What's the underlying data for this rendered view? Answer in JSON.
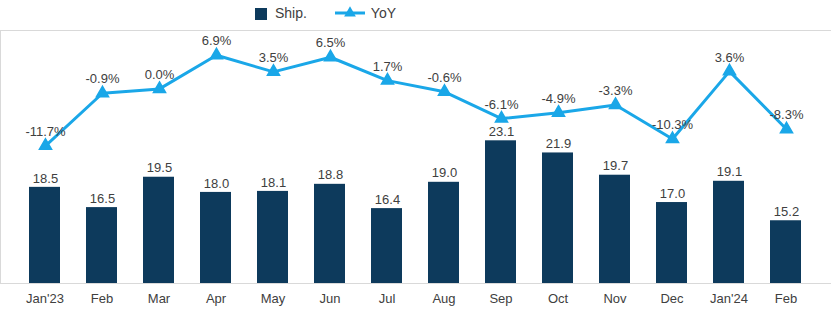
{
  "chart_data": {
    "type": "bar",
    "categories": [
      "Jan'23",
      "Feb",
      "Mar",
      "Apr",
      "May",
      "Jun",
      "Jul",
      "Aug",
      "Sep",
      "Oct",
      "Nov",
      "Dec",
      "Jan'24",
      "Feb"
    ],
    "series": [
      {
        "name": "Ship.",
        "type": "bar",
        "color": "#0d3a5c",
        "values": [
          18.5,
          16.5,
          19.5,
          18.0,
          18.1,
          18.8,
          16.4,
          19.0,
          23.1,
          21.9,
          19.7,
          17.0,
          19.1,
          15.2
        ],
        "value_labels": [
          "18.5",
          "16.5",
          "19.5",
          "18.0",
          "18.1",
          "18.8",
          "16.4",
          "19.0",
          "23.1",
          "21.9",
          "19.7",
          "17.0",
          "19.1",
          "15.2"
        ]
      },
      {
        "name": "YoY",
        "type": "line",
        "axis": "y2",
        "color": "#1aa7e8",
        "marker": "triangle",
        "values": [
          -11.7,
          -0.9,
          0.0,
          6.9,
          3.5,
          6.5,
          1.7,
          -0.6,
          -6.1,
          -4.9,
          -3.3,
          -10.3,
          3.6,
          -8.3
        ],
        "value_labels": [
          "-11.7%",
          "-0.9%",
          "0.0%",
          "6.9%",
          "3.5%",
          "6.5%",
          "1.7%",
          "-0.6%",
          "-6.1%",
          "-4.9%",
          "-3.3%",
          "-10.3%",
          "3.6%",
          "-8.3%"
        ]
      }
    ],
    "ylim": [
      9,
      34
    ],
    "yticks": [],
    "y2lim": [
      -40,
      12
    ],
    "y2ticks": [],
    "data_labels": true,
    "tick_labels": "x",
    "legend": "top",
    "grid": false
  }
}
